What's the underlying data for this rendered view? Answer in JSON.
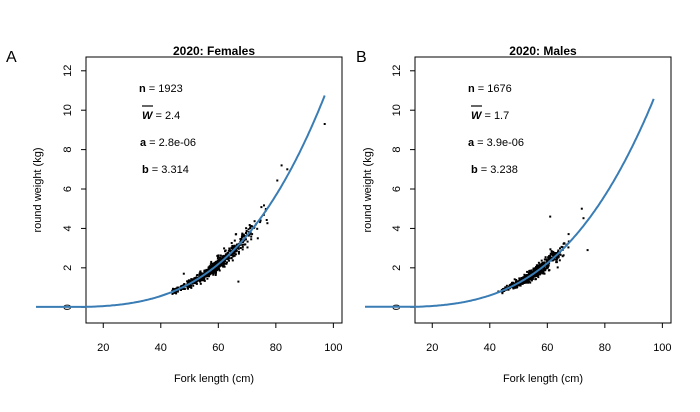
{
  "colors": {
    "curve": "#3a7db5",
    "points": "#000000",
    "background": "#ffffff"
  },
  "chart_data": [
    {
      "type": "scatter",
      "panel_letter": "A",
      "title": "2020:  Females",
      "xlabel": "Fork length (cm)",
      "ylabel": "round weight (kg)",
      "xlim": [
        14,
        103
      ],
      "ylim": [
        -0.8,
        12.7
      ],
      "xticks": [
        20,
        40,
        60,
        80,
        100
      ],
      "yticks": [
        0,
        2,
        4,
        6,
        8,
        10,
        12
      ],
      "grid": false,
      "stats": {
        "n_label": "n",
        "n": "1923",
        "w_label": "W",
        "w": "2.4",
        "a_label": "a",
        "a": "2.8e-06",
        "b_label": "b",
        "b": "3.314"
      },
      "fit": {
        "a": 2.8e-06,
        "b": 3.314,
        "x_range": [
          14,
          97
        ]
      },
      "points": {
        "count": 1923,
        "x_range": [
          44,
          97
        ],
        "center_x": 58,
        "spread_x": 7,
        "mean_weight": 2.4,
        "outliers": [
          [
            97,
            9.3
          ],
          [
            82,
            7.2
          ],
          [
            84,
            7.0
          ],
          [
            48,
            1.7
          ],
          [
            67,
            1.3
          ]
        ]
      }
    },
    {
      "type": "scatter",
      "panel_letter": "B",
      "title": "2020:  Males",
      "xlabel": "Fork length (cm)",
      "ylabel": "round weight (kg)",
      "xlim": [
        14,
        103
      ],
      "ylim": [
        -0.8,
        12.7
      ],
      "xticks": [
        20,
        40,
        60,
        80,
        100
      ],
      "yticks": [
        0,
        2,
        4,
        6,
        8,
        10,
        12
      ],
      "grid": false,
      "stats": {
        "n_label": "n",
        "n": "1676",
        "w_label": "W",
        "w": "1.7",
        "a_label": "a",
        "a": "3.9e-06",
        "b_label": "b",
        "b": "3.238"
      },
      "fit": {
        "a": 3.9e-06,
        "b": 3.238,
        "x_range": [
          14,
          97
        ]
      },
      "points": {
        "count": 1676,
        "x_range": [
          44,
          77
        ],
        "center_x": 55,
        "spread_x": 5,
        "mean_weight": 1.7,
        "outliers": [
          [
            61,
            4.6
          ],
          [
            72,
            5.0
          ],
          [
            74,
            2.9
          ],
          [
            43,
            0.8
          ]
        ]
      }
    }
  ]
}
